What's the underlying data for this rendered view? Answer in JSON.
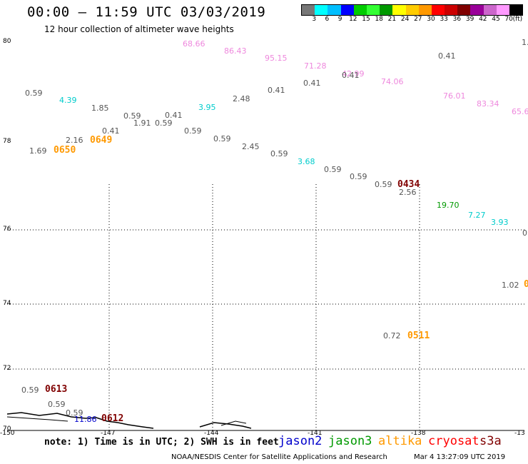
{
  "header": {
    "title": "00:00 – 11:59 UTC 03/03/2019",
    "subtitle": "12 hour collection of altimeter wave heights"
  },
  "scale": {
    "colors": [
      "#777777",
      "#00ffff",
      "#00bfff",
      "#0000ff",
      "#00cc00",
      "#33ff33",
      "#009900",
      "#ffff00",
      "#ffcc00",
      "#ff9900",
      "#ff0000",
      "#cc0000",
      "#800000",
      "#990099",
      "#cc66cc",
      "#ff99ff",
      "#000000"
    ],
    "labels": [
      "3",
      "6",
      "9",
      "12",
      "15",
      "18",
      "21",
      "24",
      "27",
      "30",
      "33",
      "36",
      "39",
      "42",
      "45",
      "70",
      "(ft)"
    ]
  },
  "axes": {
    "lat_labels": [
      "80",
      "78",
      "76",
      "74",
      "72",
      "70"
    ],
    "lon_labels": [
      "-150",
      "-147",
      "-144",
      "-141",
      "-138",
      "-13"
    ]
  },
  "values": [
    {
      "t": "68.66",
      "c": "#ee88dd"
    },
    {
      "t": "86.43",
      "c": "#ee88dd"
    },
    {
      "t": "95.15",
      "c": "#ee88dd"
    },
    {
      "t": "0.41",
      "c": "#555555"
    },
    {
      "t": "1.",
      "c": "#555555"
    },
    {
      "t": "71.28",
      "c": "#ee88dd"
    },
    {
      "t": "42.99",
      "c": "#ee88dd"
    },
    {
      "t": "0.41",
      "c": "#555555"
    },
    {
      "t": "0.41",
      "c": "#555555"
    },
    {
      "t": "74.06",
      "c": "#ee88dd"
    },
    {
      "t": "0.59",
      "c": "#555555"
    },
    {
      "t": "4.39",
      "c": "#00cccc"
    },
    {
      "t": "0.41",
      "c": "#555555"
    },
    {
      "t": "2.48",
      "c": "#555555"
    },
    {
      "t": "76.01",
      "c": "#ee88dd"
    },
    {
      "t": "83.34",
      "c": "#ee88dd"
    },
    {
      "t": "65.6",
      "c": "#ee88dd"
    },
    {
      "t": "1.85",
      "c": "#555555"
    },
    {
      "t": "3.95",
      "c": "#00cccc"
    },
    {
      "t": "0.59",
      "c": "#555555"
    },
    {
      "t": "0.41",
      "c": "#555555"
    },
    {
      "t": "1.91",
      "c": "#555555"
    },
    {
      "t": "0.59",
      "c": "#555555"
    },
    {
      "t": "0.41",
      "c": "#555555"
    },
    {
      "t": "0.59",
      "c": "#555555"
    },
    {
      "t": "0.59",
      "c": "#555555"
    },
    {
      "t": "2.16",
      "c": "#555555"
    },
    {
      "t": "1.69",
      "c": "#555555"
    },
    {
      "t": "2.45",
      "c": "#555555"
    },
    {
      "t": "0.59",
      "c": "#555555"
    },
    {
      "t": "3.68",
      "c": "#00cccc"
    },
    {
      "t": "0.59",
      "c": "#555555"
    },
    {
      "t": "0.59",
      "c": "#555555"
    },
    {
      "t": "0.59",
      "c": "#555555"
    },
    {
      "t": "2.56",
      "c": "#555555"
    },
    {
      "t": "19.70",
      "c": "#009900"
    },
    {
      "t": "7.27",
      "c": "#00cccc"
    },
    {
      "t": "3.93",
      "c": "#00cccc"
    },
    {
      "t": "0",
      "c": "#555555"
    },
    {
      "t": "1.02",
      "c": "#555555"
    },
    {
      "t": "0.72",
      "c": "#555555"
    },
    {
      "t": "0.59",
      "c": "#555555"
    },
    {
      "t": "0.59",
      "c": "#555555"
    },
    {
      "t": "0.59",
      "c": "#555555"
    },
    {
      "t": "11.86",
      "c": "#0000cc"
    }
  ],
  "time_labels": [
    {
      "t": "0650",
      "c": "#ff9900"
    },
    {
      "t": "0649",
      "c": "#ff9900"
    },
    {
      "t": "0434",
      "c": "#800000"
    },
    {
      "t": "0511",
      "c": "#ff9900"
    },
    {
      "t": "0613",
      "c": "#800000"
    },
    {
      "t": "0612",
      "c": "#800000"
    },
    {
      "t": "0",
      "c": "#ff9900"
    }
  ],
  "footer": {
    "note": "note: 1) Time is in UTC; 2) SWH is in feet",
    "legend": [
      {
        "name": "jason2",
        "color": "#0000cc"
      },
      {
        "name": "jason3",
        "color": "#009900"
      },
      {
        "name": "altika",
        "color": "#ff9900"
      },
      {
        "name": "cryosat",
        "color": "#ff0000"
      },
      {
        "name": "s3a",
        "color": "#800000"
      }
    ],
    "credit_left": "NOAA/NESDIS Center for Satellite Applications and Research",
    "credit_right": "Mar  4 13:27:09 UTC 2019"
  }
}
